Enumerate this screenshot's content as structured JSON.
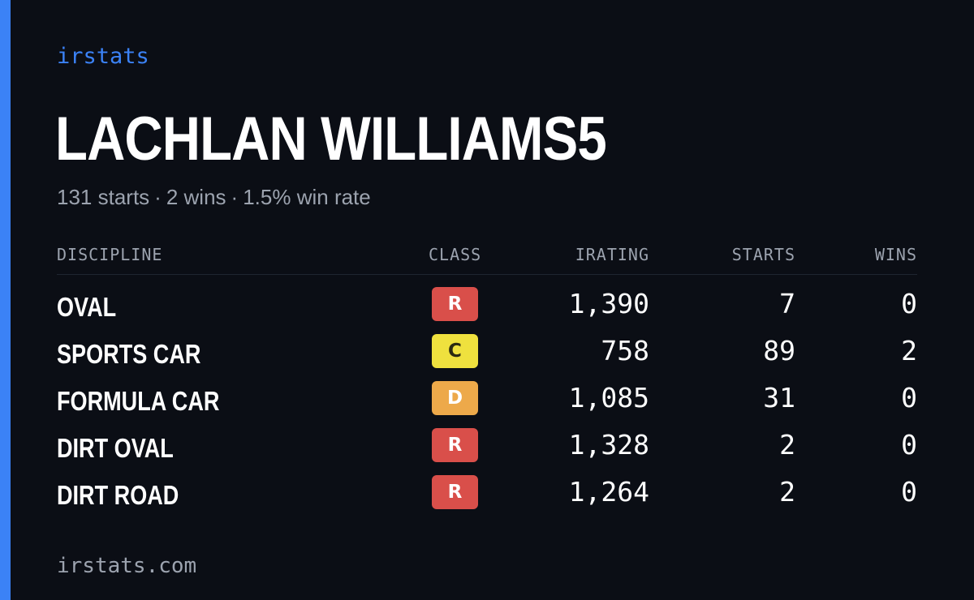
{
  "brand": "irstats",
  "driver": {
    "name": "LACHLAN WILLIAMS5"
  },
  "summary": {
    "starts": "131 starts",
    "wins": "2 wins",
    "win_rate": "1.5% win rate",
    "separator": "·"
  },
  "table": {
    "headers": {
      "discipline": "DISCIPLINE",
      "class": "CLASS",
      "irating": "IRATING",
      "starts": "STARTS",
      "wins": "WINS"
    },
    "rows": [
      {
        "discipline": "OVAL",
        "class": "R",
        "class_bg": "#d94f4a",
        "class_fg": "#ffffff",
        "irating": "1,390",
        "starts": "7",
        "wins": "0"
      },
      {
        "discipline": "SPORTS CAR",
        "class": "C",
        "class_bg": "#efe13e",
        "class_fg": "#2b2a12",
        "irating": "758",
        "starts": "89",
        "wins": "2"
      },
      {
        "discipline": "FORMULA CAR",
        "class": "D",
        "class_bg": "#eda94a",
        "class_fg": "#ffffff",
        "irating": "1,085",
        "starts": "31",
        "wins": "0"
      },
      {
        "discipline": "DIRT OVAL",
        "class": "R",
        "class_bg": "#d94f4a",
        "class_fg": "#ffffff",
        "irating": "1,328",
        "starts": "2",
        "wins": "0"
      },
      {
        "discipline": "DIRT ROAD",
        "class": "R",
        "class_bg": "#d94f4a",
        "class_fg": "#ffffff",
        "irating": "1,264",
        "starts": "2",
        "wins": "0"
      }
    ]
  },
  "footer": {
    "site": "irstats.com"
  },
  "colors": {
    "background": "#0b0e15",
    "accent": "#3b82f6",
    "muted": "#9ca3af"
  }
}
